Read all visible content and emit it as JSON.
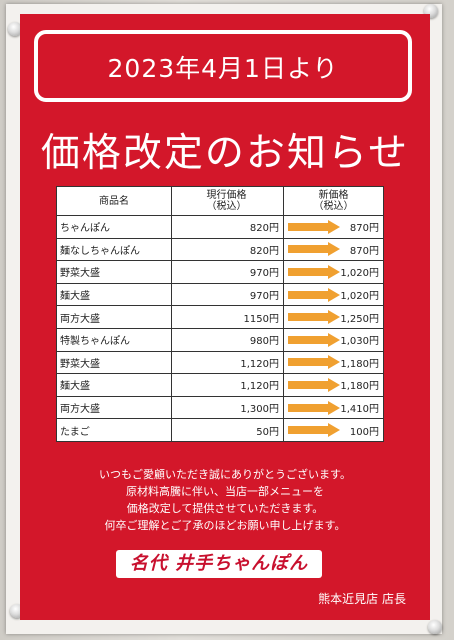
{
  "notice": {
    "date_line": "2023年4月1日より",
    "title": "価格改定のお知らせ"
  },
  "table": {
    "headers": {
      "item": "商品名",
      "current_line1": "現行価格",
      "current_line2": "（税込）",
      "new_line1": "新価格",
      "new_line2": "（税込）"
    },
    "rows": [
      {
        "item": "ちゃんぽん",
        "current": "820円",
        "new": "870円"
      },
      {
        "item": "麺なしちゃんぽん",
        "current": "820円",
        "new": "870円"
      },
      {
        "item": "野菜大盛",
        "current": "970円",
        "new": "1,020円"
      },
      {
        "item": "麺大盛",
        "current": "970円",
        "new": "1,020円"
      },
      {
        "item": "両方大盛",
        "current": "1150円",
        "new": "1,250円"
      },
      {
        "item": "特製ちゃんぽん",
        "current": "980円",
        "new": "1,030円"
      },
      {
        "item": "野菜大盛",
        "current": "1,120円",
        "new": "1,180円"
      },
      {
        "item": "麺大盛",
        "current": "1,120円",
        "new": "1,180円"
      },
      {
        "item": "両方大盛",
        "current": "1,300円",
        "new": "1,410円"
      },
      {
        "item": "たまご",
        "current": "50円",
        "new": "100円"
      }
    ]
  },
  "message": {
    "line1": "いつもご愛顧いただき誠にありがとうございます。",
    "line2": "原材料高騰に伴い、当店一部メニューを",
    "line3": "価格改定して提供させていただきます。",
    "line4": "何卒ご理解とご了承のほどお願い申し上げます。"
  },
  "brand": {
    "logo_text": "名代 井手ちゃんぽん"
  },
  "store": {
    "signature": "熊本近見店 店長"
  },
  "colors": {
    "poster_red": "#d3172a",
    "arrow_orange": "#f0a030"
  }
}
